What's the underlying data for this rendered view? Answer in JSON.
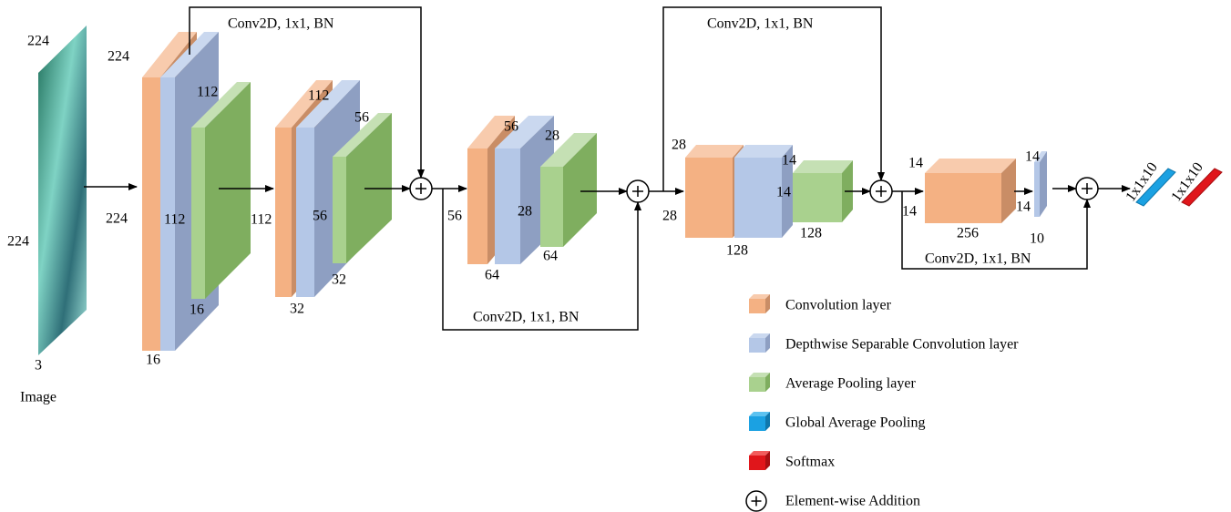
{
  "input_label": "Image",
  "dimension_labels": [
    "224",
    "224",
    "3",
    "224",
    "224",
    "16",
    "112",
    "112",
    "16",
    "112",
    "112",
    "56",
    "56",
    "32",
    "32",
    "56",
    "28",
    "56",
    "28",
    "64",
    "64",
    "28",
    "28",
    "14",
    "14",
    "128",
    "128",
    "14",
    "14",
    "256",
    "14",
    "14",
    "10"
  ],
  "skip_labels": [
    "Conv2D, 1x1, BN",
    "Conv2D, 1x1, BN",
    "Conv2D, 1x1, BN",
    "Conv2D, 1x1, BN"
  ],
  "outputs": [
    "1x1x10",
    "1x1x10"
  ],
  "legend": [
    "Convolution layer",
    "Depthwise Separable Convolution layer",
    "Average Pooling layer",
    "Global Average Pooling",
    "Softmax",
    "Element-wise Addition"
  ]
}
